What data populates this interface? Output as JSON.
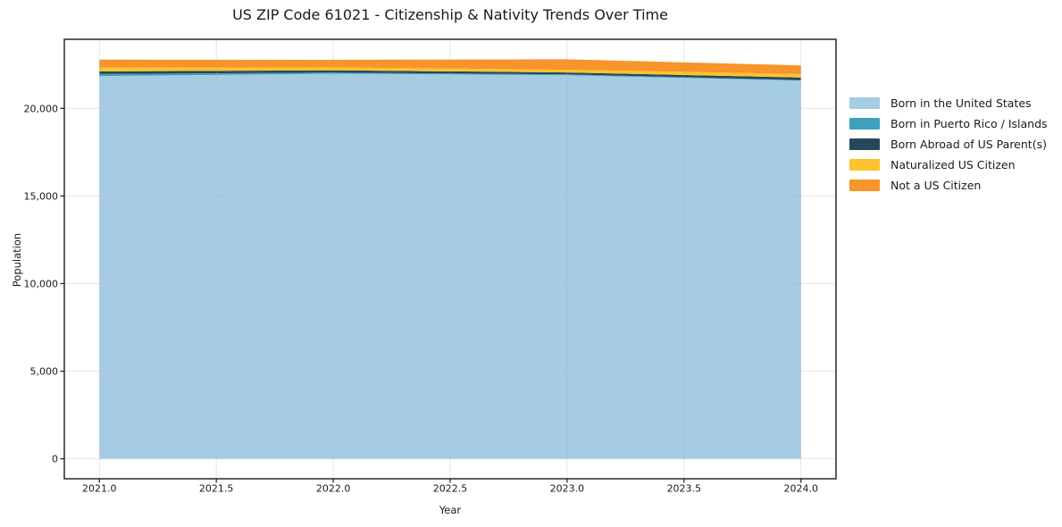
{
  "figure": {
    "background": "#ffffff",
    "frame_color": "#1a1a1a",
    "grid_color": "#b0b0b0",
    "text_color": "#1a1a1a"
  },
  "chart_data": {
    "type": "area",
    "stacked": true,
    "title": "US ZIP Code 61021 - Citizenship & Nativity Trends Over Time",
    "xlabel": "Year",
    "ylabel": "Population",
    "grid": true,
    "legend_position": "right",
    "x": [
      2021,
      2022,
      2023,
      2024
    ],
    "series": [
      {
        "name": "Born in the United States",
        "color": "#a5cce3",
        "values": [
          21840,
          21980,
          21890,
          21580
        ]
      },
      {
        "name": "Born in Puerto Rico / Islands",
        "color": "#3fa0bd",
        "values": [
          120,
          60,
          50,
          30
        ]
      },
      {
        "name": "Born Abroad of US Parent(s)",
        "color": "#27485b",
        "values": [
          150,
          130,
          110,
          150
        ]
      },
      {
        "name": "Naturalized US Citizen",
        "color": "#fcc32c",
        "values": [
          210,
          170,
          150,
          200
        ]
      },
      {
        "name": "Not a US Citizen",
        "color": "#f7942a",
        "values": [
          460,
          430,
          600,
          490
        ]
      }
    ],
    "totals": [
      22780,
      22770,
      22800,
      22450
    ],
    "x_ticks": [
      {
        "value": 2021.0,
        "label": "2021.0"
      },
      {
        "value": 2021.5,
        "label": "2021.5"
      },
      {
        "value": 2022.0,
        "label": "2022.0"
      },
      {
        "value": 2022.5,
        "label": "2022.5"
      },
      {
        "value": 2023.0,
        "label": "2023.0"
      },
      {
        "value": 2023.5,
        "label": "2023.5"
      },
      {
        "value": 2024.0,
        "label": "2024.0"
      }
    ],
    "y_ticks": [
      {
        "value": 0,
        "label": "0"
      },
      {
        "value": 5000,
        "label": "5,000"
      },
      {
        "value": 10000,
        "label": "10,000"
      },
      {
        "value": 15000,
        "label": "15,000"
      },
      {
        "value": 20000,
        "label": "20,000"
      }
    ],
    "xlim": [
      2020.85,
      2024.15
    ],
    "ylim": [
      -1140,
      23940
    ]
  }
}
